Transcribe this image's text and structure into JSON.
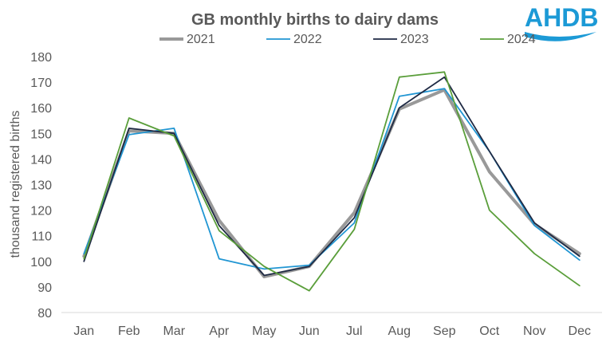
{
  "logo": {
    "text": "AHDB",
    "color": "#1c9ad6"
  },
  "chart_data": {
    "type": "line",
    "title": "GB monthly births to dairy dams",
    "xlabel": "",
    "ylabel": "thousand registered births",
    "ylim": [
      80,
      180
    ],
    "yticks": [
      80,
      90,
      100,
      110,
      120,
      130,
      140,
      150,
      160,
      170,
      180
    ],
    "grid": false,
    "legend_position": "top",
    "categories": [
      "Jan",
      "Feb",
      "Mar",
      "Apr",
      "May",
      "Jun",
      "Jul",
      "Aug",
      "Sep",
      "Oct",
      "Nov",
      "Dec"
    ],
    "series": [
      {
        "name": "2021",
        "color": "#999999",
        "values": [
          102,
          151,
          150,
          116,
          94,
          98,
          119,
          159.5,
          167,
          135,
          114.5,
          103
        ]
      },
      {
        "name": "2022",
        "color": "#2196d3",
        "values": [
          103,
          149.5,
          152,
          101,
          97,
          98.5,
          115,
          164.5,
          167.5,
          143,
          114,
          100.5
        ]
      },
      {
        "name": "2023",
        "color": "#1f2a44",
        "values": [
          100,
          152,
          150,
          114,
          94.5,
          98,
          117,
          160,
          172,
          143,
          115,
          102
        ]
      },
      {
        "name": "2024",
        "color": "#5a9e3a",
        "values": [
          101,
          156,
          149,
          112,
          98,
          88.5,
          112.5,
          172,
          174,
          120,
          103,
          90.5
        ]
      }
    ]
  }
}
